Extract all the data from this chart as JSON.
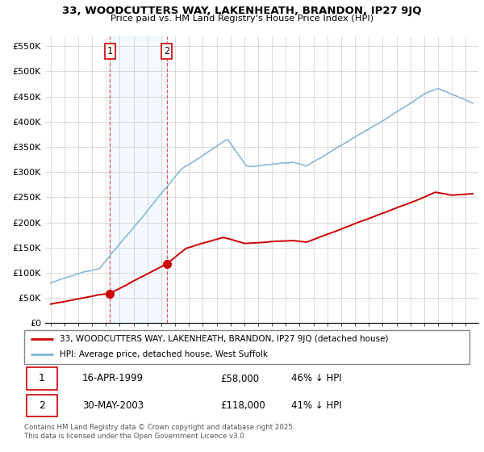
{
  "title": "33, WOODCUTTERS WAY, LAKENHEATH, BRANDON, IP27 9JQ",
  "subtitle": "Price paid vs. HM Land Registry's House Price Index (HPI)",
  "legend_line1": "33, WOODCUTTERS WAY, LAKENHEATH, BRANDON, IP27 9JQ (detached house)",
  "legend_line2": "HPI: Average price, detached house, West Suffolk",
  "footer": "Contains HM Land Registry data © Crown copyright and database right 2025.\nThis data is licensed under the Open Government Licence v3.0.",
  "sale1_date": "16-APR-1999",
  "sale1_price": "£58,000",
  "sale1_hpi": "46% ↓ HPI",
  "sale2_date": "30-MAY-2003",
  "sale2_price": "£118,000",
  "sale2_hpi": "41% ↓ HPI",
  "sale1_x": 1999.29,
  "sale1_y": 58000,
  "sale2_x": 2003.41,
  "sale2_y": 118000,
  "hpi_color": "#7eb5d6",
  "price_color": "#cc0000",
  "dot_color": "#cc0000",
  "span_color": "#ddeeff",
  "ylim": [
    0,
    570000
  ],
  "xlim_start": 1994.6,
  "xlim_end": 2025.9,
  "yticks": [
    0,
    50000,
    100000,
    150000,
    200000,
    250000,
    300000,
    350000,
    400000,
    450000,
    500000,
    550000
  ],
  "ytick_labels": [
    "£0",
    "£50K",
    "£100K",
    "£150K",
    "£200K",
    "£250K",
    "£300K",
    "£350K",
    "£400K",
    "£450K",
    "£500K",
    "£550K"
  ],
  "xticks": [
    1995,
    1996,
    1997,
    1998,
    1999,
    2000,
    2001,
    2002,
    2003,
    2004,
    2005,
    2006,
    2007,
    2008,
    2009,
    2010,
    2011,
    2012,
    2013,
    2014,
    2015,
    2016,
    2017,
    2018,
    2019,
    2020,
    2021,
    2022,
    2023,
    2024,
    2025
  ]
}
